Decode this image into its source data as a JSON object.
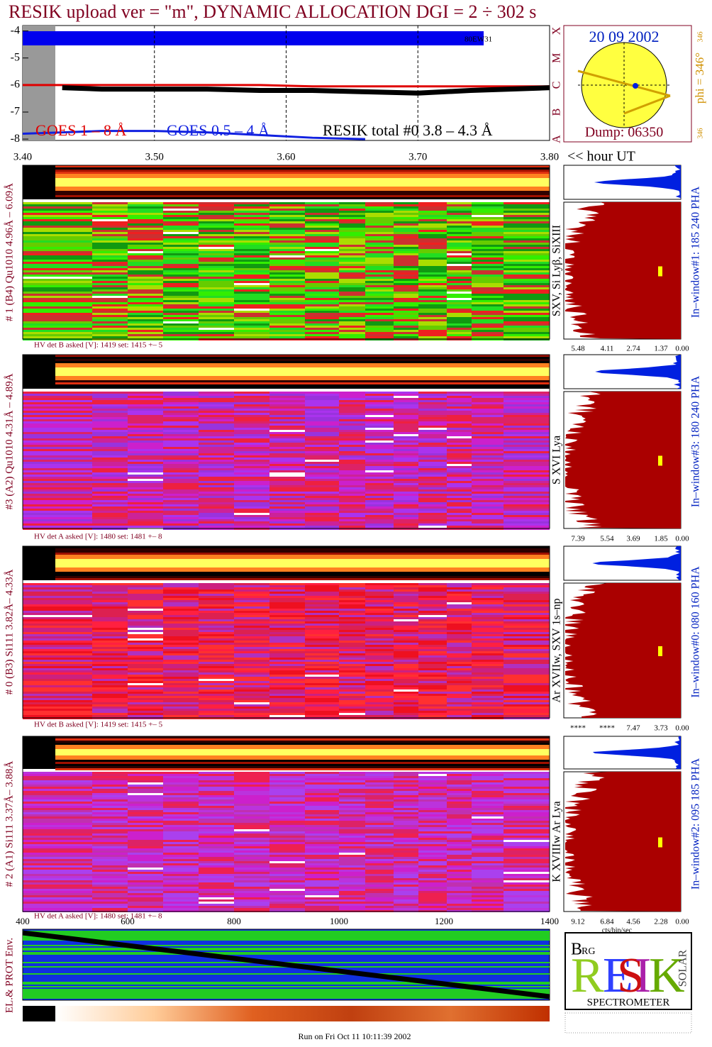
{
  "chart_data": {
    "type": "line",
    "title": "RESIK upload ver = \"m\", DYNAMIC ALLOCATION  DGI =   2 ÷ 302 s",
    "annotation": "80EW31",
    "x_unit_label": "<< hour UT",
    "class_labels": [
      "X",
      "M",
      "C",
      "B",
      "A"
    ],
    "xlim": [
      3.4,
      3.8
    ],
    "xticks": [
      {
        "value": 3.4,
        "label": "3.40"
      },
      {
        "value": 3.5,
        "label": "3.50"
      },
      {
        "value": 3.6,
        "label": "3.60"
      },
      {
        "value": 3.7,
        "label": "3.70"
      },
      {
        "value": 3.8,
        "label": "3.80"
      }
    ],
    "ylim": [
      -8.05,
      -3.8
    ],
    "yticks": [
      -4,
      -5,
      -6,
      -7,
      -8
    ],
    "grid": true,
    "x": [
      3.4,
      3.43,
      3.46,
      3.5,
      3.54,
      3.58,
      3.62,
      3.66,
      3.7,
      3.74,
      3.77,
      3.8
    ],
    "series": [
      {
        "name": "GOES 1 – 8 Å",
        "color": "#e00000",
        "values": [
          -6.0,
          -6.0,
          -6.0,
          -6.0,
          -6.0,
          -6.0,
          -6.05,
          -6.05,
          -6.05,
          -6.05,
          -6.05,
          -6.05
        ]
      },
      {
        "name": "GOES 0.5 – 4 Å",
        "color": "#1020e0",
        "values": [
          -7.8,
          -7.75,
          -7.7,
          -7.7,
          -7.75,
          -7.85,
          -7.95,
          -8.0,
          null,
          null,
          null,
          null
        ]
      },
      {
        "name": "RESIK total #0  3.8 – 4.3 Å",
        "color": "#000000",
        "values": [
          null,
          -6.1,
          -6.15,
          -6.15,
          -6.15,
          -6.2,
          -6.2,
          -6.25,
          -6.3,
          -6.2,
          -6.15,
          -6.1
        ]
      }
    ]
  },
  "sun": {
    "date": "20 09 2002",
    "dump": "Dump: 06350",
    "phi": "phi = 346°",
    "phi_small": "346",
    "phi_bottom": "346"
  },
  "panels": [
    {
      "label": "# 1 (B4) Qu1010 4.96Å – 6.09Å",
      "lines": "SXV, Si Lyβ, SiXIII",
      "window": "In–window#1:  185 240 PHA",
      "hv": "HV det B asked [V]:  1419 set:  1415 +–    5",
      "pha_ticks": [
        "5.48",
        "4.11",
        "2.74",
        "1.37",
        "0.00"
      ]
    },
    {
      "label": "#3 (A2) Qu1010  4.31Å – 4.89Å",
      "lines": "S XVI Lya",
      "window": "In–window#3:  180 240 PHA",
      "hv": "HV det A asked [V]:  1480 set:  1481 +–    8",
      "pha_ticks": [
        "7.39",
        "5.54",
        "3.69",
        "1.85",
        "0.00"
      ]
    },
    {
      "label": "# 0 (B3) Si111  3.82Å– 4.33Å",
      "lines": "Ar XVIIw,  SXV 1s–np",
      "window": "In–window#0:  080 160 PHA",
      "hv": "HV det B asked [V]:  1419 set:  1415 +–    5",
      "pha_ticks": [
        "****",
        "****",
        "7.47",
        "3.73",
        "0.00"
      ]
    },
    {
      "label": "# 2 (A1) Si111  3.37Å– 3.88Å",
      "lines": "K XVIIIw  Ar Lya",
      "window": "In–window#2:  095 185 PHA",
      "hv": "HV det A asked [V]:  1480 set:  1481 +–    8",
      "pha_ticks": [
        "9.12",
        "6.84",
        "4.56",
        "2.28",
        "0.00"
      ]
    }
  ],
  "pha_unit": "cts/bin/sec",
  "bottom_axis": [
    "400",
    "600",
    "800",
    "1000",
    "1200",
    "1400"
  ],
  "env_label": "EL.& PROT Env.",
  "logo": {
    "text": "SPECTROMETER",
    "letters": [
      "R",
      "E",
      "S",
      "I",
      "K"
    ],
    "small": [
      "B",
      "RG",
      "SOLAR"
    ]
  },
  "footer": "Run on Fri Oct 11 10:11:39 2002"
}
